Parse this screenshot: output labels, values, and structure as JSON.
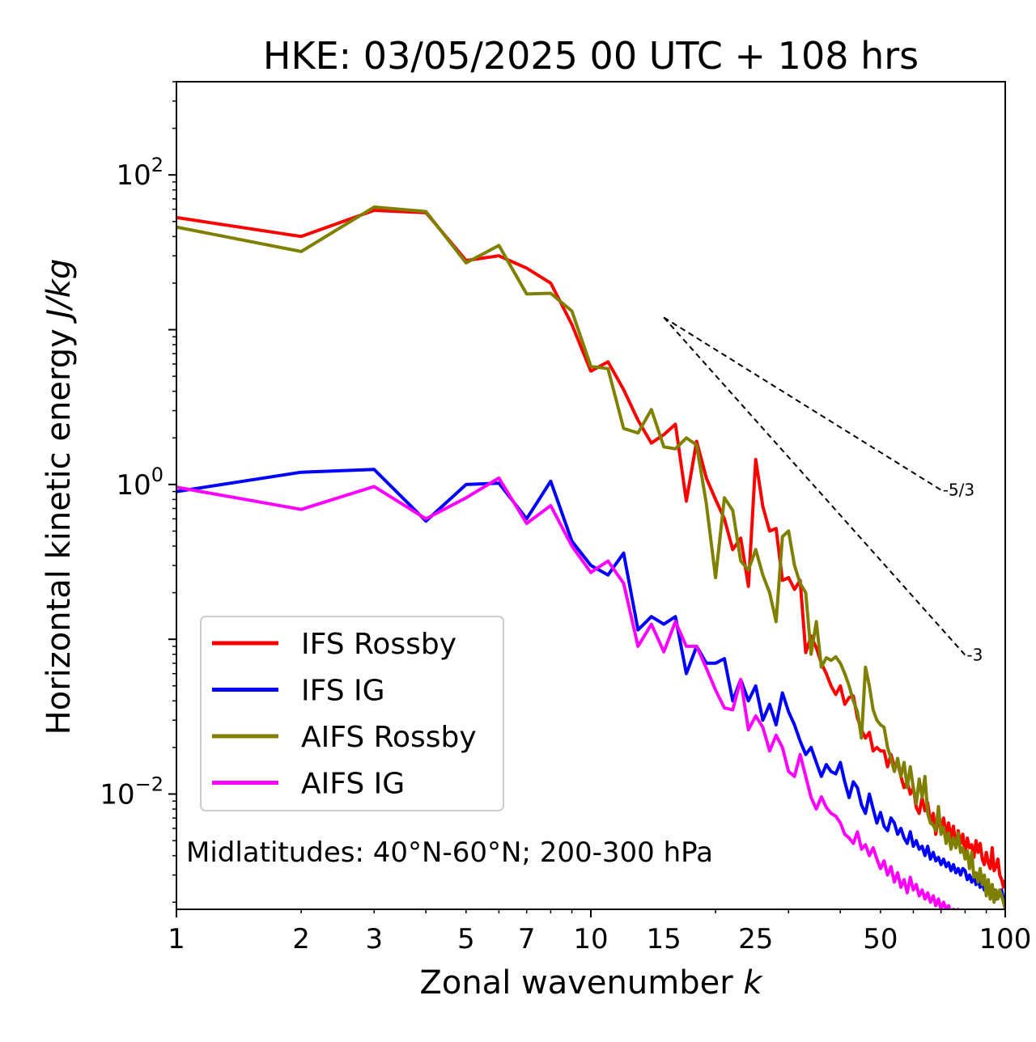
{
  "chart_data": {
    "type": "line",
    "title": "HKE: 03/05/2025 00 UTC + 108 hrs",
    "xlabel": "Zonal wavenumber",
    "xlabel_var": "k",
    "ylabel": "Horizontal kinetic energy",
    "ylabel_unit": "J/kg",
    "xscale": "log",
    "yscale": "log",
    "xlim": [
      1,
      100
    ],
    "ylim": [
      0.0018,
      400
    ],
    "x_ticks": [
      1,
      2,
      3,
      5,
      7,
      10,
      15,
      25,
      50,
      100
    ],
    "x_tick_labels": [
      "1",
      "2",
      "3",
      "5",
      "7",
      "10",
      "15",
      "25",
      "50",
      "100"
    ],
    "y_ticks": [
      0.01,
      1,
      100
    ],
    "y_tick_base": "10",
    "y_tick_exponents": [
      "−2",
      "0",
      "2"
    ],
    "legend_position": "lower-left",
    "annotation": "Midlatitudes: 40°N-60°N; 200-300 hPa",
    "reference_lines": [
      {
        "label": "-5/3",
        "slope": -1.6667,
        "x_start": 15,
        "x_end": 70,
        "y_start": 12,
        "color": "#000000"
      },
      {
        "label": "-3",
        "slope": -3,
        "x_start": 15,
        "x_end": 80,
        "y_start": 12,
        "color": "#000000"
      }
    ],
    "series": [
      {
        "name": "IFS Rossby",
        "color": "#ff0000",
        "x": [
          1,
          2,
          3,
          4,
          5,
          6,
          7,
          8,
          9,
          10,
          11,
          12,
          13,
          14,
          15,
          16,
          17,
          18,
          19,
          20,
          21,
          22,
          23,
          24,
          25,
          26,
          27,
          28,
          29,
          30,
          31,
          32,
          33,
          34,
          35,
          36,
          37,
          38,
          39,
          40,
          41,
          42,
          43,
          44,
          45,
          46,
          47,
          48,
          49,
          50,
          51,
          52,
          53,
          54,
          55,
          56,
          57,
          58,
          59,
          60,
          61,
          62,
          63,
          64,
          65,
          66,
          67,
          68,
          69,
          70,
          71,
          72,
          73,
          74,
          75,
          76,
          77,
          78,
          79,
          80,
          81,
          82,
          83,
          84,
          85,
          86,
          87,
          88,
          89,
          90,
          91,
          92,
          93,
          94,
          95,
          96,
          97,
          98,
          99,
          100
        ],
        "y": [
          53,
          40,
          59,
          57,
          28,
          30,
          25,
          20,
          10.8,
          5.4,
          6.2,
          4.1,
          2.6,
          1.85,
          2.1,
          2.45,
          0.78,
          1.9,
          1.1,
          0.8,
          0.6,
          0.38,
          0.45,
          0.22,
          1.45,
          0.72,
          0.5,
          0.52,
          0.24,
          0.25,
          0.21,
          0.24,
          0.082,
          0.105,
          0.088,
          0.07,
          0.06,
          0.05,
          0.044,
          0.05,
          0.038,
          0.042,
          0.043,
          0.031,
          0.026,
          0.023,
          0.025,
          0.019,
          0.02,
          0.019,
          0.019,
          0.015,
          0.018,
          0.015,
          0.016,
          0.013,
          0.011,
          0.012,
          0.01,
          0.011,
          0.0082,
          0.0075,
          0.0095,
          0.0078,
          0.0088,
          0.0065,
          0.0075,
          0.0055,
          0.007,
          0.006,
          0.007,
          0.0055,
          0.0065,
          0.0052,
          0.0062,
          0.0045,
          0.0058,
          0.0048,
          0.0055,
          0.004,
          0.0052,
          0.0045,
          0.0047,
          0.0039,
          0.005,
          0.0042,
          0.0048,
          0.0038,
          0.0035,
          0.0042,
          0.0036,
          0.0033,
          0.0045,
          0.0032,
          0.0034,
          0.0038,
          0.003,
          0.0028,
          0.0025,
          0.0028
        ]
      },
      {
        "name": "IFS IG",
        "color": "#0000ff",
        "x": [
          1,
          2,
          3,
          4,
          5,
          6,
          7,
          8,
          9,
          10,
          11,
          12,
          13,
          14,
          15,
          16,
          17,
          18,
          19,
          20,
          21,
          22,
          23,
          24,
          25,
          26,
          27,
          28,
          29,
          30,
          31,
          32,
          33,
          34,
          35,
          36,
          37,
          38,
          39,
          40,
          41,
          42,
          43,
          44,
          45,
          46,
          47,
          48,
          49,
          50,
          51,
          52,
          53,
          54,
          55,
          56,
          57,
          58,
          59,
          60,
          61,
          62,
          63,
          64,
          65,
          66,
          67,
          68,
          69,
          70,
          71,
          72,
          73,
          74,
          75,
          76,
          77,
          78,
          79,
          80,
          81,
          82,
          83,
          84,
          85,
          86,
          87,
          88,
          89,
          90,
          91,
          92,
          93,
          94,
          95,
          96,
          97,
          98,
          99,
          100
        ],
        "y": [
          0.9,
          1.2,
          1.25,
          0.58,
          1.0,
          1.02,
          0.6,
          1.05,
          0.43,
          0.3,
          0.26,
          0.36,
          0.115,
          0.14,
          0.125,
          0.14,
          0.06,
          0.09,
          0.07,
          0.07,
          0.075,
          0.04,
          0.055,
          0.04,
          0.05,
          0.03,
          0.038,
          0.028,
          0.045,
          0.034,
          0.028,
          0.022,
          0.018,
          0.02,
          0.016,
          0.013,
          0.0155,
          0.014,
          0.0135,
          0.016,
          0.012,
          0.0095,
          0.012,
          0.011,
          0.0085,
          0.0075,
          0.01,
          0.008,
          0.0065,
          0.0076,
          0.0062,
          0.0058,
          0.007,
          0.0065,
          0.0055,
          0.006,
          0.0052,
          0.0048,
          0.0057,
          0.0046,
          0.005,
          0.0044,
          0.0046,
          0.004,
          0.0046,
          0.0038,
          0.0042,
          0.0037,
          0.0039,
          0.0035,
          0.0038,
          0.0034,
          0.0036,
          0.0032,
          0.0035,
          0.0031,
          0.0033,
          0.003,
          0.0033,
          0.0032,
          0.0028,
          0.003,
          0.0027,
          0.003,
          0.0026,
          0.0028,
          0.0025,
          0.0027,
          0.0024,
          0.0026,
          0.0023,
          0.0025,
          0.0022,
          0.0024,
          0.0021,
          0.0023,
          0.0022,
          0.0024,
          0.0021,
          0.0022
        ]
      },
      {
        "name": "AIFS Rossby",
        "color": "#808000",
        "x": [
          1,
          2,
          3,
          4,
          5,
          6,
          7,
          8,
          9,
          10,
          11,
          12,
          13,
          14,
          15,
          16,
          17,
          18,
          19,
          20,
          21,
          22,
          23,
          24,
          25,
          26,
          27,
          28,
          29,
          30,
          31,
          32,
          33,
          34,
          35,
          36,
          37,
          38,
          39,
          40,
          41,
          42,
          43,
          44,
          45,
          46,
          47,
          48,
          49,
          50,
          51,
          52,
          53,
          54,
          55,
          56,
          57,
          58,
          59,
          60,
          61,
          62,
          63,
          64,
          65,
          66,
          67,
          68,
          69,
          70,
          71,
          72,
          73,
          74,
          75,
          76,
          77,
          78,
          79,
          80,
          81,
          82,
          83,
          84,
          85,
          86,
          87,
          88,
          89,
          90,
          91,
          92,
          93,
          94,
          95,
          96,
          97,
          98,
          99,
          100
        ],
        "y": [
          46,
          32,
          62,
          58,
          27,
          35,
          17,
          17.2,
          13.2,
          5.8,
          5.6,
          2.3,
          2.15,
          3.05,
          1.75,
          1.7,
          2.0,
          1.8,
          0.75,
          0.25,
          0.82,
          0.68,
          0.32,
          0.28,
          0.38,
          0.26,
          0.2,
          0.13,
          0.46,
          0.5,
          0.3,
          0.23,
          0.2,
          0.08,
          0.13,
          0.066,
          0.076,
          0.073,
          0.077,
          0.07,
          0.06,
          0.05,
          0.04,
          0.034,
          0.023,
          0.066,
          0.05,
          0.035,
          0.03,
          0.028,
          0.027,
          0.02,
          0.017,
          0.014,
          0.017,
          0.013,
          0.016,
          0.011,
          0.015,
          0.011,
          0.0087,
          0.0125,
          0.0095,
          0.013,
          0.0075,
          0.0065,
          0.0063,
          0.0058,
          0.0083,
          0.0055,
          0.0061,
          0.0048,
          0.0056,
          0.0044,
          0.0052,
          0.0045,
          0.0056,
          0.0042,
          0.0045,
          0.0038,
          0.0043,
          0.0033,
          0.0042,
          0.0029,
          0.0031,
          0.0027,
          0.0033,
          0.0026,
          0.003,
          0.0022,
          0.0028,
          0.0021,
          0.0026,
          0.002,
          0.0024,
          0.0021,
          0.0024,
          0.0022,
          0.002,
          0.0018
        ]
      },
      {
        "name": "AIFS IG",
        "color": "#ff00ff",
        "x": [
          1,
          2,
          3,
          4,
          5,
          6,
          7,
          8,
          9,
          10,
          11,
          12,
          13,
          14,
          15,
          16,
          17,
          18,
          19,
          20,
          21,
          22,
          23,
          24,
          25,
          26,
          27,
          28,
          29,
          30,
          31,
          32,
          33,
          34,
          35,
          36,
          37,
          38,
          39,
          40,
          41,
          42,
          43,
          44,
          45,
          46,
          47,
          48,
          49,
          50,
          51,
          52,
          53,
          54,
          55,
          56,
          57,
          58,
          59,
          60,
          61,
          62,
          63,
          64,
          65,
          66,
          67,
          68,
          69,
          70,
          71,
          72,
          73,
          74,
          75,
          76,
          77,
          78,
          79,
          80,
          81,
          82,
          83,
          84,
          85,
          86,
          87,
          88,
          89,
          90,
          91,
          92,
          93,
          94,
          95,
          96,
          97,
          98,
          99,
          100
        ],
        "y": [
          0.96,
          0.69,
          0.97,
          0.6,
          0.82,
          1.1,
          0.56,
          0.73,
          0.4,
          0.27,
          0.32,
          0.23,
          0.09,
          0.125,
          0.083,
          0.13,
          0.09,
          0.09,
          0.065,
          0.047,
          0.036,
          0.035,
          0.055,
          0.026,
          0.032,
          0.027,
          0.019,
          0.024,
          0.02,
          0.014,
          0.013,
          0.018,
          0.013,
          0.0095,
          0.008,
          0.0096,
          0.0082,
          0.0075,
          0.0072,
          0.0065,
          0.0055,
          0.0052,
          0.0048,
          0.0057,
          0.0044,
          0.0047,
          0.004,
          0.0045,
          0.0038,
          0.0033,
          0.0037,
          0.003,
          0.0034,
          0.0027,
          0.0031,
          0.0025,
          0.0028,
          0.0023,
          0.0029,
          0.0024,
          0.0026,
          0.0022,
          0.0024,
          0.0021,
          0.0023,
          0.002,
          0.0022,
          0.0019,
          0.0021,
          0.0018,
          0.002,
          0.0018,
          0.0019,
          0.0017,
          0.0018,
          0.0016,
          0.0018,
          0.0016,
          0.0017,
          0.0015,
          0.0016,
          0.0015,
          0.0016,
          0.0014,
          0.0015,
          0.0014,
          0.0015,
          0.0013,
          0.0014,
          0.0013,
          0.0014,
          0.0012,
          0.0013,
          0.0012,
          0.0013,
          0.0012,
          0.0012,
          0.0011,
          0.0012,
          0.0011
        ]
      }
    ]
  }
}
